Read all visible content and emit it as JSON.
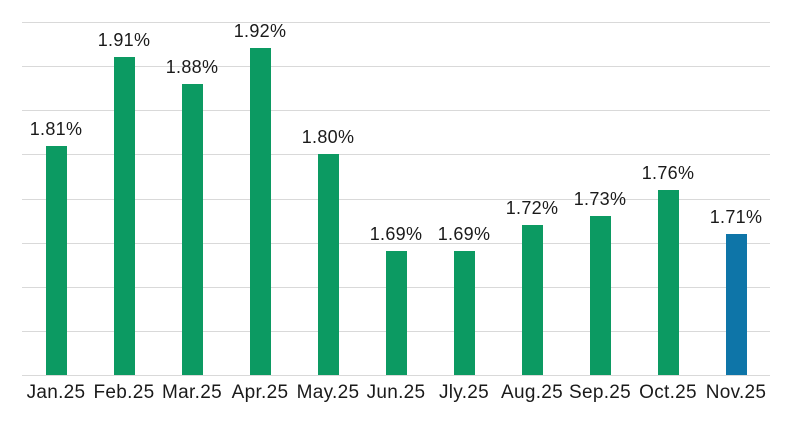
{
  "chart_data": {
    "type": "bar",
    "title": "",
    "xlabel": "",
    "ylabel": "",
    "categories": [
      "Jan.25",
      "Feb.25",
      "Mar.25",
      "Apr.25",
      "May.25",
      "Jun.25",
      "Jly.25",
      "Aug.25",
      "Sep.25",
      "Oct.25",
      "Nov.25"
    ],
    "values": [
      1.81,
      1.91,
      1.88,
      1.92,
      1.8,
      1.69,
      1.69,
      1.72,
      1.73,
      1.76,
      1.71
    ],
    "value_labels": [
      "1.81%",
      "1.91%",
      "1.88%",
      "1.92%",
      "1.80%",
      "1.69%",
      "1.69%",
      "1.72%",
      "1.73%",
      "1.76%",
      "1.71%"
    ],
    "unit": "%",
    "ylim": [
      1.55,
      1.95
    ],
    "grid_step": 0.05,
    "grid": true,
    "legend": false,
    "y_axis_labels_visible": false,
    "highlight_index": 10,
    "colors": {
      "bar": "#0c9a62",
      "highlight": "#0e75a8",
      "gridline": "#d9d9d9",
      "label_text": "#1a1a1a",
      "background": "#ffffff"
    }
  }
}
